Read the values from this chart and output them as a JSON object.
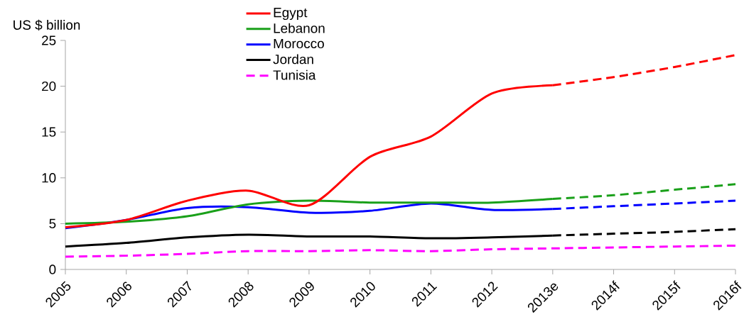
{
  "chart_data": {
    "type": "line",
    "ylabel": "US $ billion",
    "categories": [
      "2005",
      "2006",
      "2007",
      "2008",
      "2009",
      "2010",
      "2011",
      "2012",
      "2013e",
      "2014f",
      "2015f",
      "2016f"
    ],
    "ylim": [
      0,
      25
    ],
    "yticks": [
      0,
      5,
      10,
      15,
      20,
      25
    ],
    "legend": "top",
    "grid": false,
    "series": [
      {
        "name": "Egypt",
        "color": "#ff0000",
        "line_style": "solid",
        "values": [
          4.6,
          5.4,
          7.5,
          8.6,
          7.0,
          12.3,
          14.5,
          19.2,
          20.1,
          null,
          null,
          null
        ]
      },
      {
        "name": "Lebanon",
        "color": "#1aa01a",
        "line_style": "solid",
        "values": [
          5.0,
          5.2,
          5.8,
          7.1,
          7.5,
          7.3,
          7.3,
          7.3,
          7.7,
          null,
          null,
          null
        ]
      },
      {
        "name": "Morocco",
        "color": "#0000ff",
        "line_style": "solid",
        "values": [
          4.5,
          5.4,
          6.7,
          6.8,
          6.2,
          6.4,
          7.2,
          6.5,
          6.6,
          null,
          null,
          null
        ]
      },
      {
        "name": "Jordan",
        "color": "#000000",
        "line_style": "solid",
        "values": [
          2.5,
          2.9,
          3.5,
          3.8,
          3.6,
          3.6,
          3.4,
          3.5,
          3.7,
          null,
          null,
          null
        ]
      },
      {
        "name": "Tunisia",
        "color": "#ff00ff",
        "line_style": "dashed",
        "values": [
          1.4,
          1.5,
          1.7,
          2.0,
          2.0,
          2.1,
          2.0,
          2.2,
          2.3,
          2.4,
          2.5,
          2.6
        ]
      },
      {
        "color": "#ff0000",
        "line_style": "dashed",
        "values": [
          null,
          null,
          null,
          null,
          null,
          null,
          null,
          null,
          20.1,
          21.0,
          22.1,
          23.4
        ]
      },
      {
        "color": "#1aa01a",
        "line_style": "dashed",
        "values": [
          null,
          null,
          null,
          null,
          null,
          null,
          null,
          null,
          7.7,
          8.1,
          8.7,
          9.3
        ]
      },
      {
        "color": "#0000ff",
        "line_style": "dashed",
        "values": [
          null,
          null,
          null,
          null,
          null,
          null,
          null,
          null,
          6.6,
          6.9,
          7.2,
          7.5
        ]
      },
      {
        "color": "#000000",
        "line_style": "dashed",
        "values": [
          null,
          null,
          null,
          null,
          null,
          null,
          null,
          null,
          3.7,
          3.9,
          4.1,
          4.4
        ]
      }
    ]
  }
}
